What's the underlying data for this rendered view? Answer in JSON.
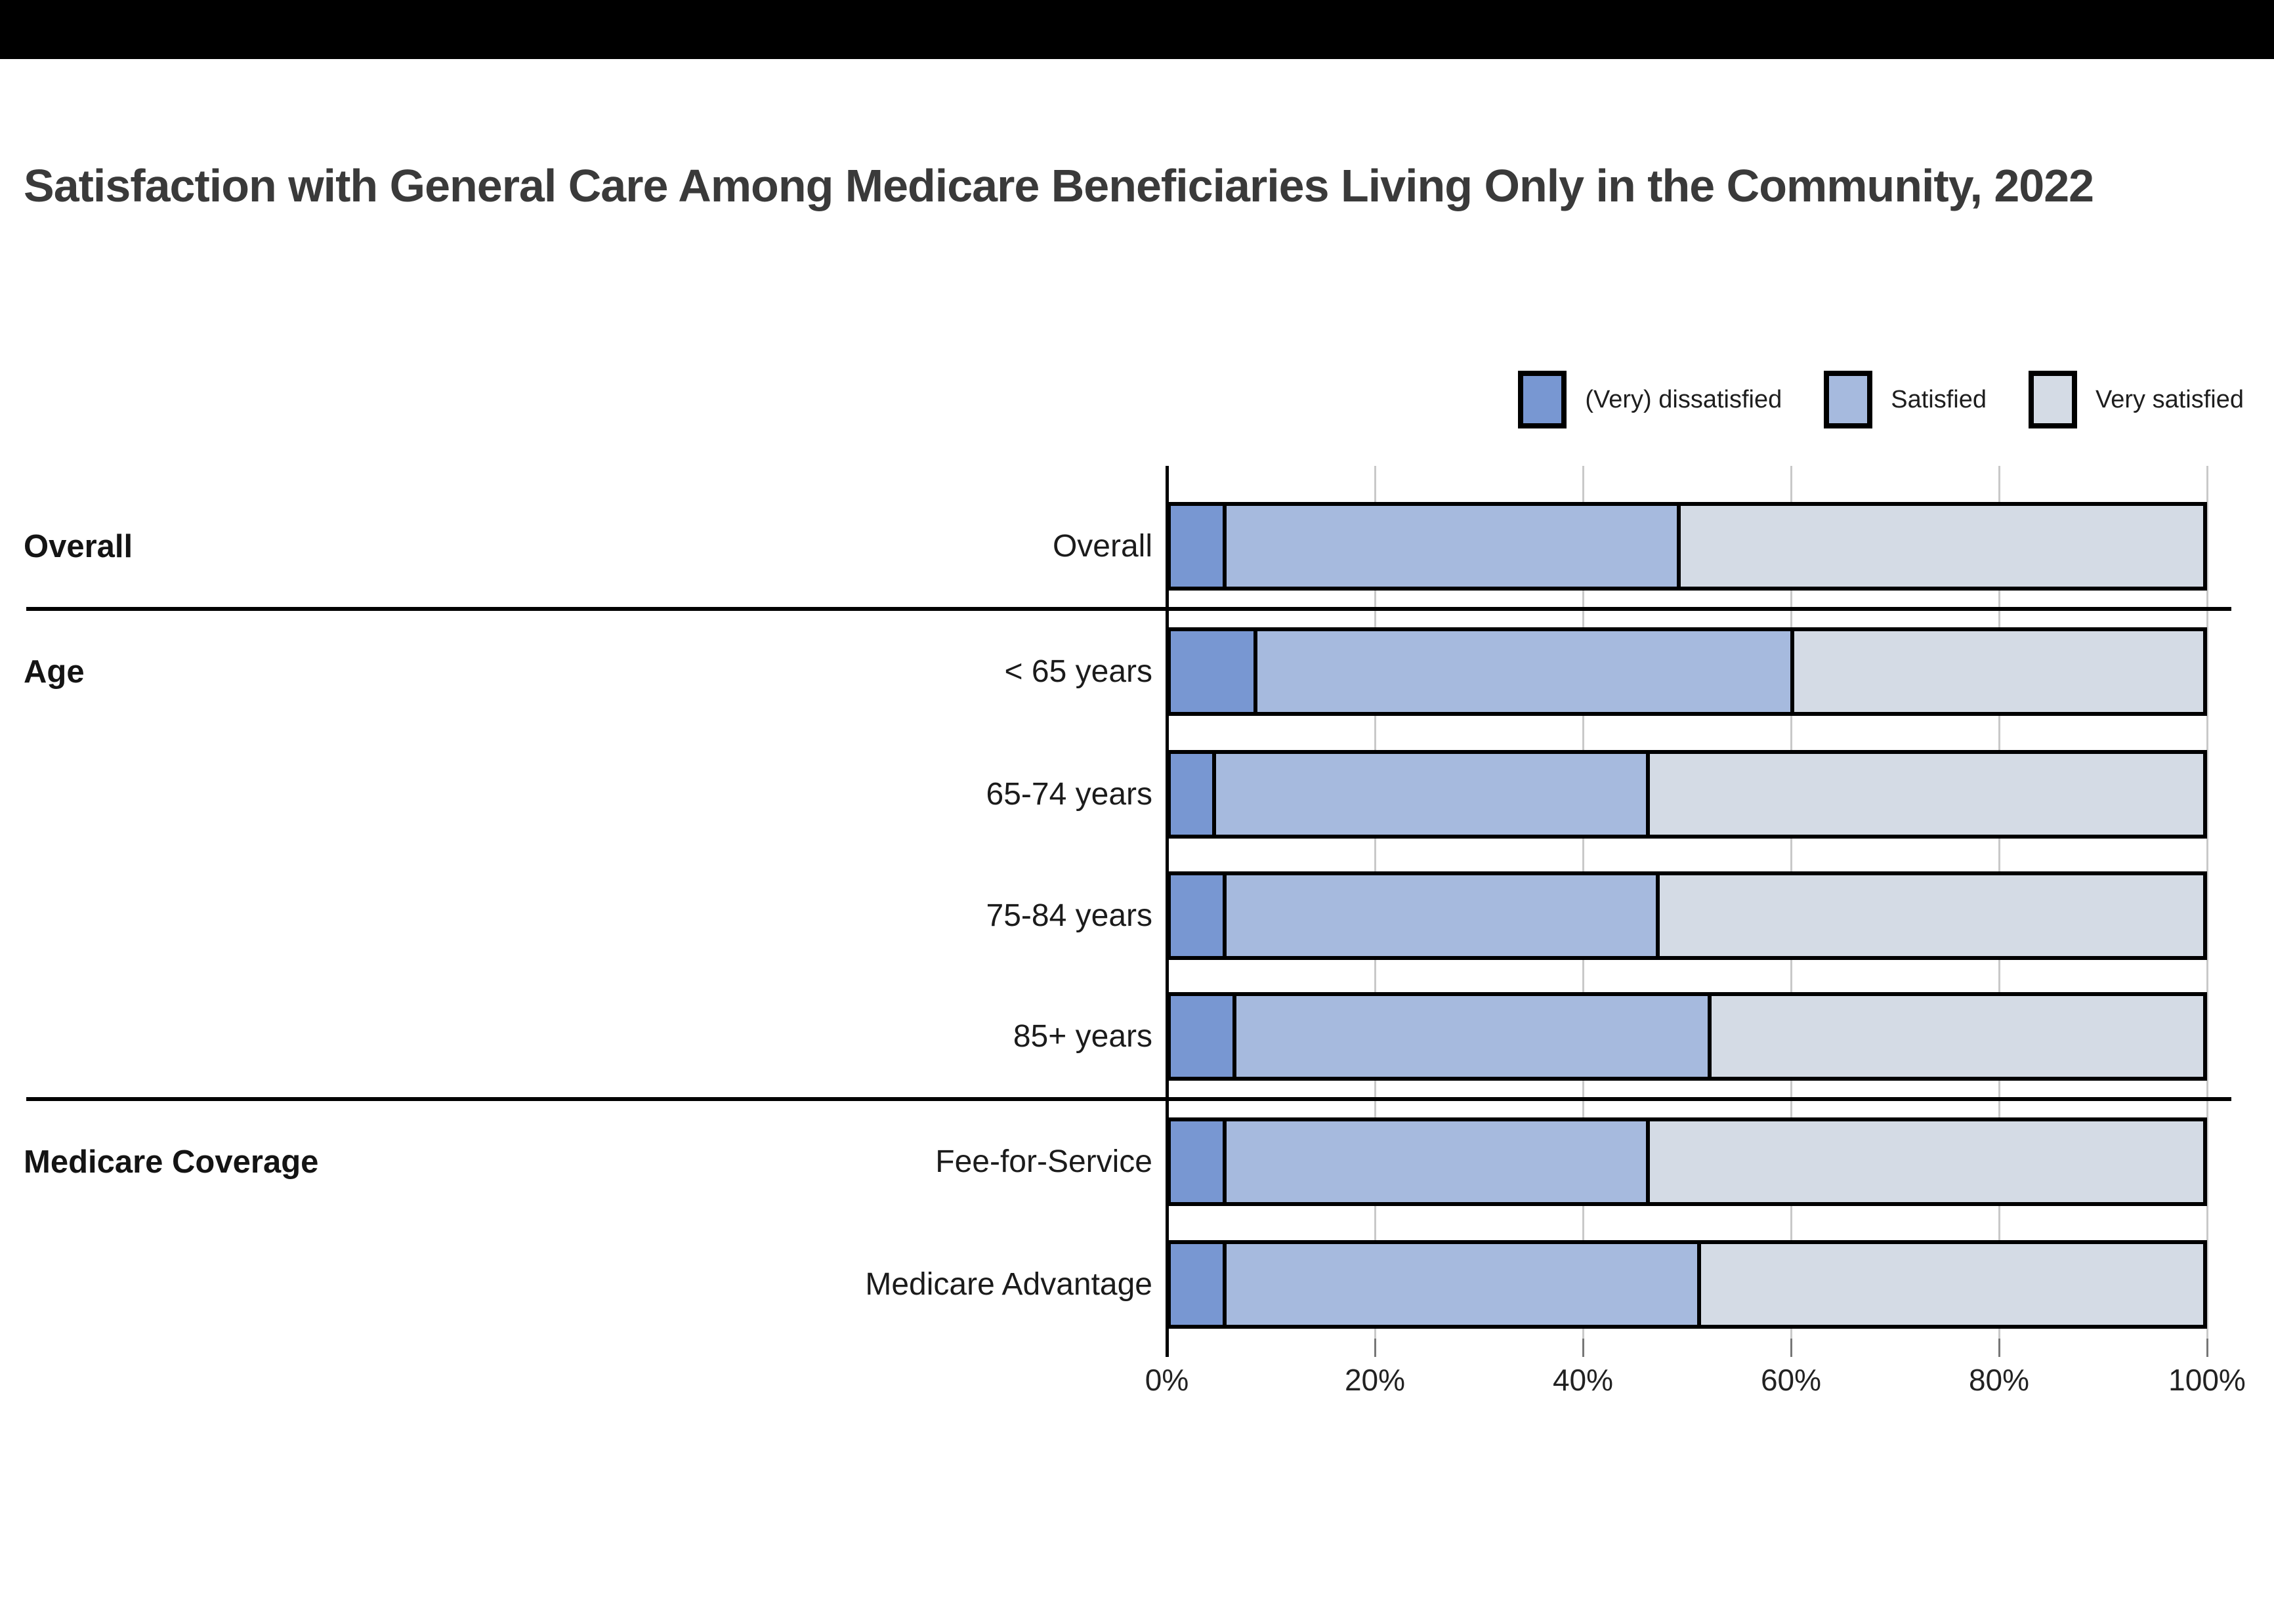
{
  "page": {
    "background_color": "#ffffff",
    "topbar_color": "#000000"
  },
  "title": "Satisfaction with General Care Among Medicare Beneficiaries Living Only in the Community, 2022",
  "legend": {
    "items": [
      {
        "label": "(Very) dissatisfied",
        "color": "#7897d2"
      },
      {
        "label": "Satisfied",
        "color": "#a6bade"
      },
      {
        "label": "Very satisfied",
        "color": "#d4dbe5"
      }
    ]
  },
  "chart_data": {
    "type": "bar",
    "orientation": "horizontal",
    "stacked": true,
    "unit": "percent",
    "title": "Satisfaction with General Care Among Medicare Beneficiaries Living Only in the Community, 2022",
    "series_names": [
      "(Very) dissatisfied",
      "Satisfied",
      "Very satisfied"
    ],
    "series_colors": [
      "#7897d2",
      "#a6bade",
      "#d4dbe5"
    ],
    "x_axis": {
      "ticks": [
        "0%",
        "20%",
        "40%",
        "60%",
        "80%",
        "100%"
      ],
      "tick_values": [
        0,
        20,
        40,
        60,
        80,
        100
      ],
      "min": 0,
      "max": 100,
      "grid": true
    },
    "groups": [
      {
        "label": "Overall",
        "rows": [
          {
            "label": "Overall",
            "values": [
              5,
              44,
              51
            ]
          }
        ]
      },
      {
        "label": "Age",
        "rows": [
          {
            "label": "< 65 years",
            "values": [
              8,
              52,
              40
            ]
          },
          {
            "label": "65-74 years",
            "values": [
              4,
              42,
              54
            ]
          },
          {
            "label": "75-84 years",
            "values": [
              5,
              42,
              53
            ]
          },
          {
            "label": "85+ years",
            "values": [
              6,
              46,
              48
            ]
          }
        ]
      },
      {
        "label": "Medicare Coverage",
        "rows": [
          {
            "label": "Fee-for-Service",
            "values": [
              5,
              41,
              54
            ]
          },
          {
            "label": "Medicare Advantage",
            "values": [
              5,
              46,
              49
            ]
          }
        ]
      }
    ],
    "legend_position": "top-right"
  }
}
